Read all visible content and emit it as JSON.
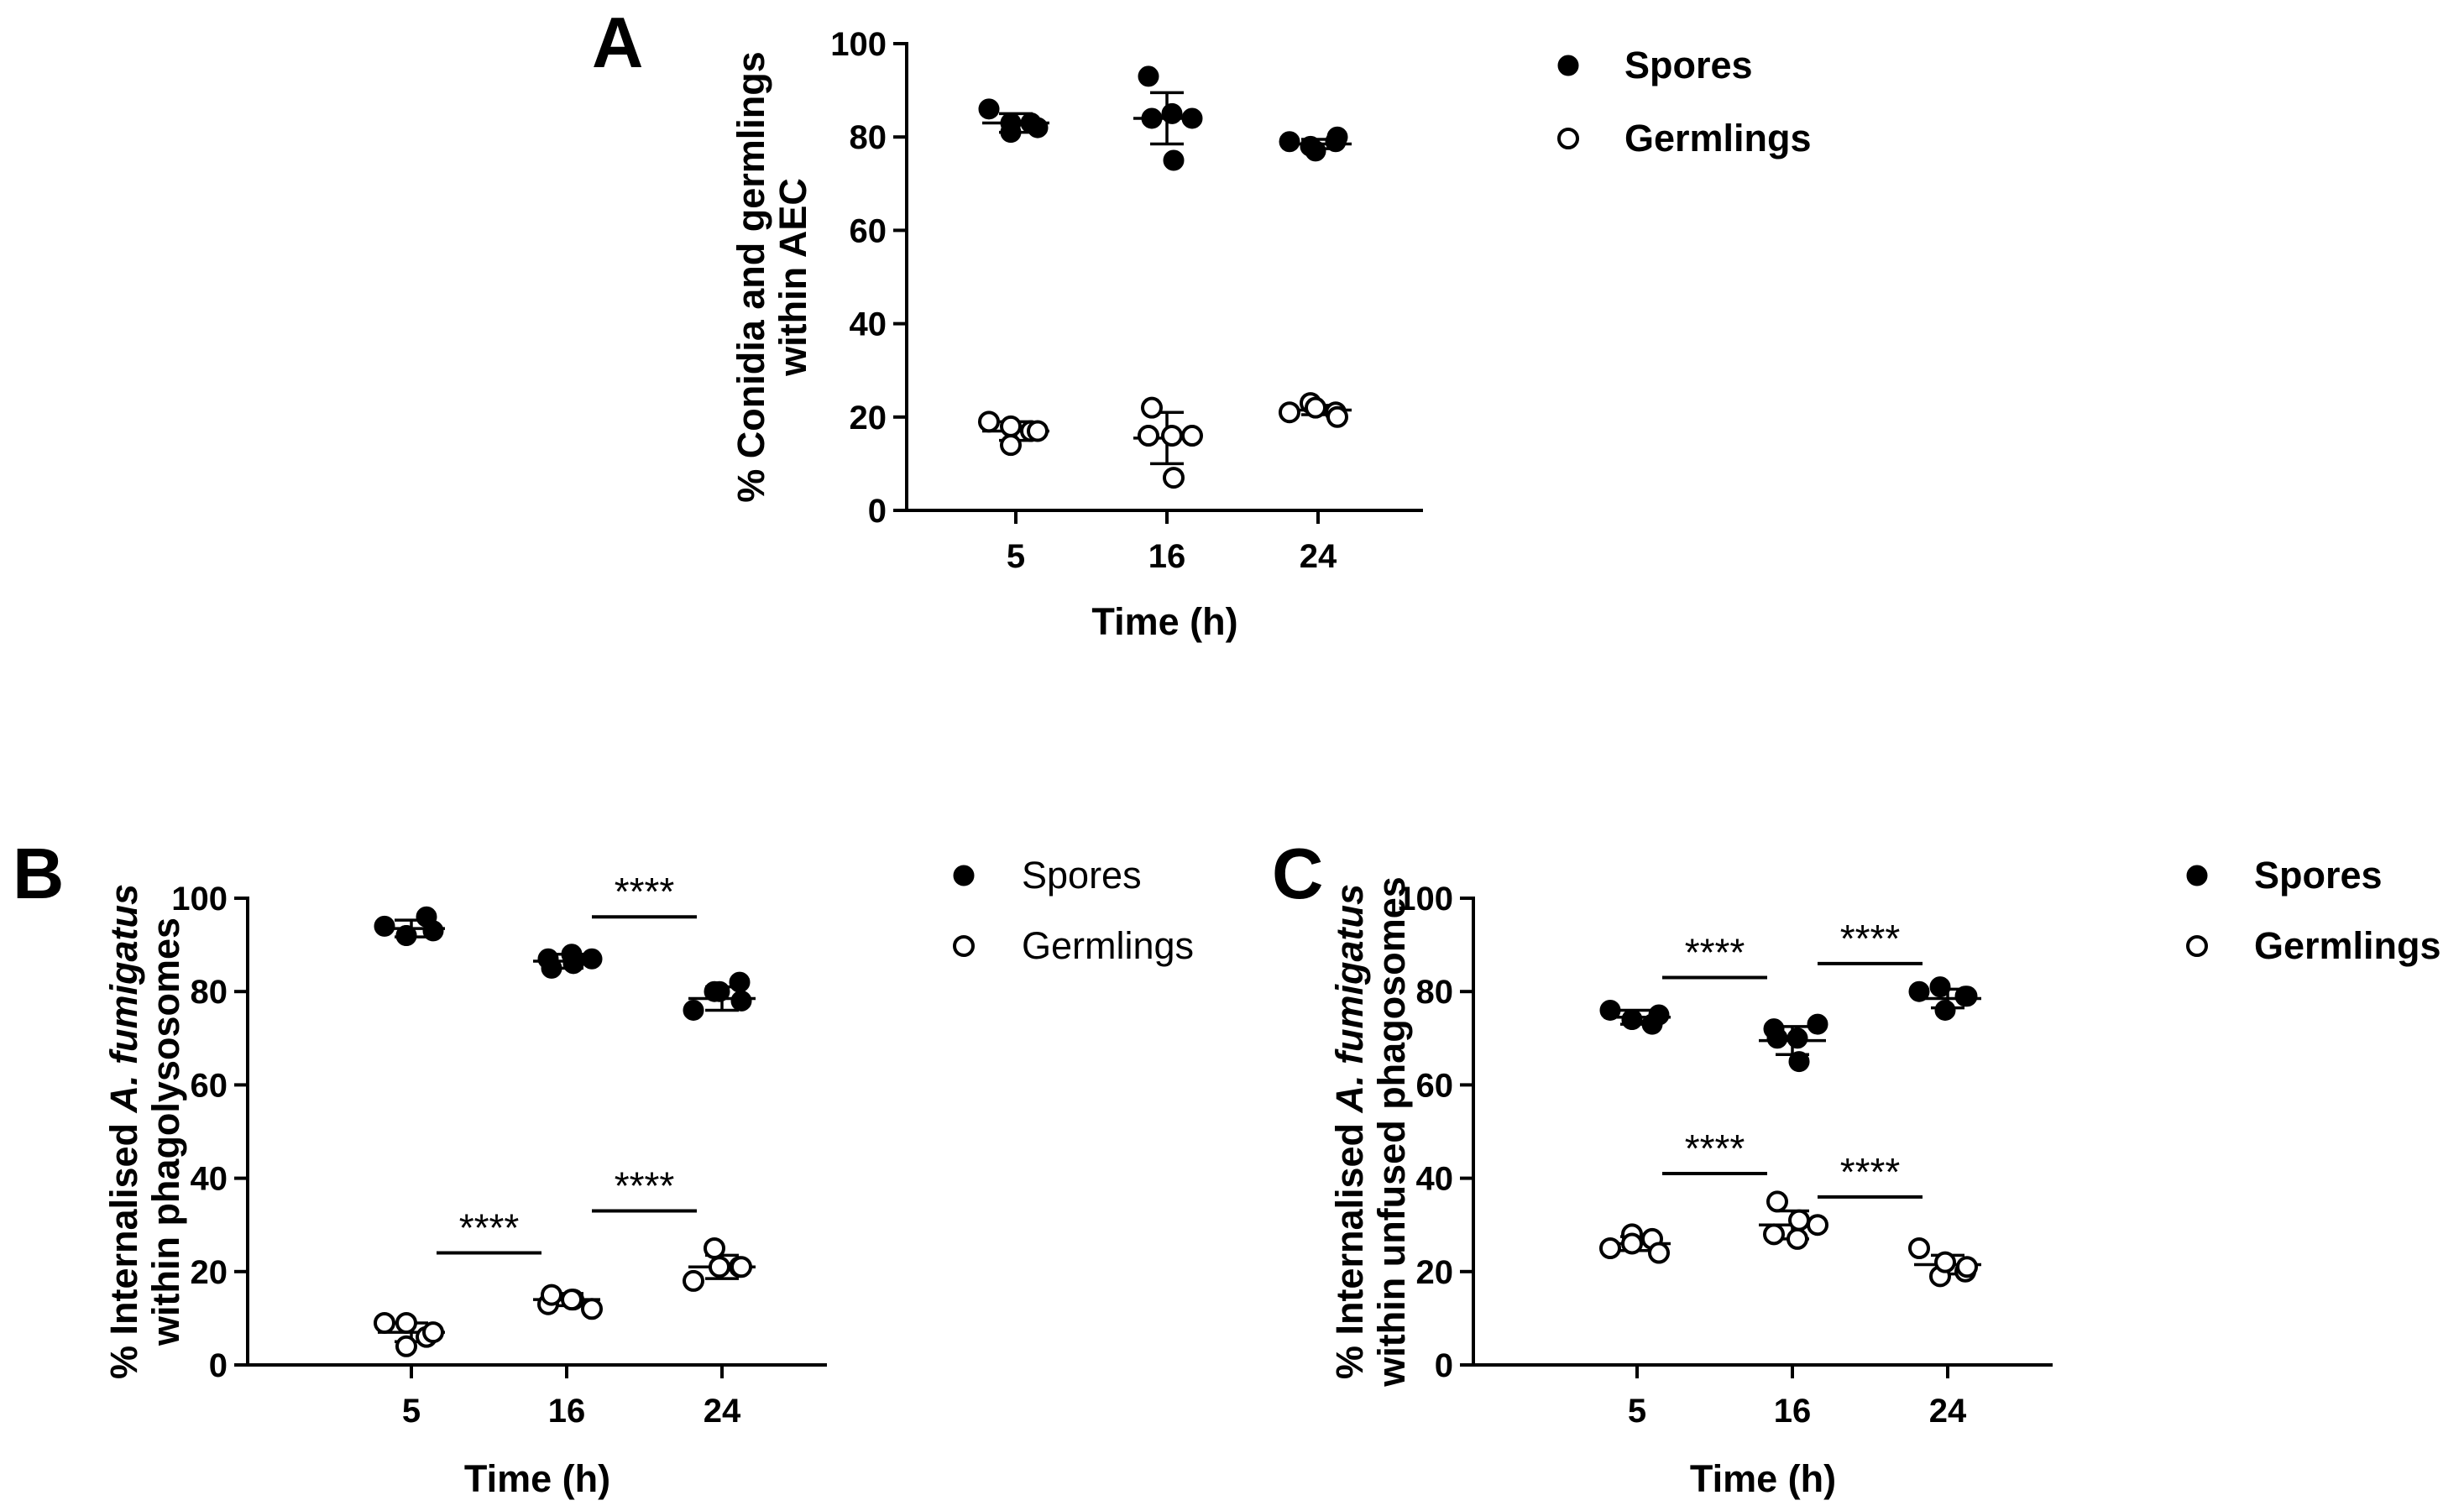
{
  "chart_data": [
    {
      "panel": "A",
      "type": "scatter",
      "xlabel": "Time (h)",
      "ylabel": [
        "% Conidia and germlings",
        "within AEC"
      ],
      "categories": [
        "5",
        "16",
        "24"
      ],
      "ylim": [
        0,
        100
      ],
      "yticks": [
        0,
        20,
        40,
        60,
        80,
        100
      ],
      "legend": {
        "placement": "right",
        "bold": true,
        "entries": [
          "Spores",
          "Germlings"
        ]
      },
      "series": [
        {
          "name": "Spores",
          "marker": "filled-circle",
          "points": [
            [
              86,
              81,
              83,
              83,
              82
            ],
            [
              93,
              84,
              75,
              85,
              84
            ],
            [
              79,
              78,
              77,
              79,
              80
            ]
          ],
          "mean": [
            83,
            84,
            78.5
          ],
          "sd": [
            2,
            5.5,
            1
          ]
        },
        {
          "name": "Germlings",
          "marker": "open-circle",
          "points": [
            [
              19,
              14,
              18,
              17,
              17
            ],
            [
              16,
              22,
              7,
              16,
              16
            ],
            [
              21,
              23,
              22,
              21,
              20
            ]
          ],
          "mean": [
            17,
            15.5,
            21.5
          ],
          "sd": [
            2,
            5.5,
            1
          ]
        }
      ],
      "significance": []
    },
    {
      "panel": "B",
      "type": "scatter",
      "xlabel": "Time (h)",
      "ylabel": [
        "% Internalised A. fumigatus",
        "within phagolysosomes"
      ],
      "categories": [
        "5",
        "16",
        "24"
      ],
      "ylim": [
        0,
        100
      ],
      "yticks": [
        0,
        20,
        40,
        60,
        80,
        100
      ],
      "legend": {
        "placement": "right",
        "bold": false,
        "entries": [
          "Spores",
          "Germlings"
        ]
      },
      "series": [
        {
          "name": "Spores",
          "marker": "filled-circle",
          "points": [
            [
              94,
              92,
              92,
              96,
              93
            ],
            [
              87,
              85,
              86,
              88,
              87
            ],
            [
              76,
              80,
              80,
              82,
              78
            ]
          ],
          "mean": [
            93.5,
            86.5,
            78.5
          ],
          "sd": [
            1.8,
            1.5,
            2.5
          ]
        },
        {
          "name": "Germlings",
          "marker": "open-circle",
          "points": [
            [
              9,
              4,
              9,
              6,
              7
            ],
            [
              13,
              15,
              14,
              14,
              12
            ],
            [
              18,
              25,
              21,
              21,
              21
            ]
          ],
          "mean": [
            7,
            14,
            21
          ],
          "sd": [
            2,
            1.3,
            2.5
          ]
        }
      ],
      "significance": [
        {
          "series": "Spores",
          "from": "16",
          "to": "24",
          "y": 96,
          "label": "****"
        },
        {
          "series": "Germlings",
          "from": "5",
          "to": "16",
          "y": 24,
          "label": "****"
        },
        {
          "series": "Germlings",
          "from": "16",
          "to": "24",
          "y": 33,
          "label": "****"
        }
      ]
    },
    {
      "panel": "C",
      "type": "scatter",
      "xlabel": "Time (h)",
      "ylabel": [
        "% Internalised A. fumigatus",
        "within unfused phagosomes"
      ],
      "categories": [
        "5",
        "16",
        "24"
      ],
      "ylim": [
        0,
        100
      ],
      "yticks": [
        0,
        20,
        40,
        60,
        80,
        100
      ],
      "legend": {
        "placement": "right",
        "bold": true,
        "entries": [
          "Spores",
          "Germlings"
        ]
      },
      "series": [
        {
          "name": "Spores",
          "marker": "filled-circle",
          "points": [
            [
              76,
              74,
              74,
              73,
              75
            ],
            [
              72,
              70,
              65,
              70,
              73
            ],
            [
              80,
              81,
              76,
              79,
              79
            ]
          ],
          "mean": [
            74.5,
            69.5,
            78.5
          ],
          "sd": [
            1.5,
            3,
            2
          ]
        },
        {
          "name": "Germlings",
          "marker": "open-circle",
          "points": [
            [
              25,
              28,
              26,
              27,
              24
            ],
            [
              28,
              35,
              31,
              27,
              30
            ],
            [
              25,
              19,
              22,
              20,
              21
            ]
          ],
          "mean": [
            26,
            30,
            21.5
          ],
          "sd": [
            1.5,
            3,
            2
          ]
        }
      ],
      "significance": [
        {
          "series": "Spores",
          "from": "5",
          "to": "16",
          "y": 83,
          "label": "****"
        },
        {
          "series": "Spores",
          "from": "16",
          "to": "24",
          "y": 86,
          "label": "****"
        },
        {
          "series": "Germlings",
          "from": "5",
          "to": "16",
          "y": 41,
          "label": "****"
        },
        {
          "series": "Germlings",
          "from": "16",
          "to": "24",
          "y": 36,
          "label": "****"
        }
      ]
    }
  ]
}
